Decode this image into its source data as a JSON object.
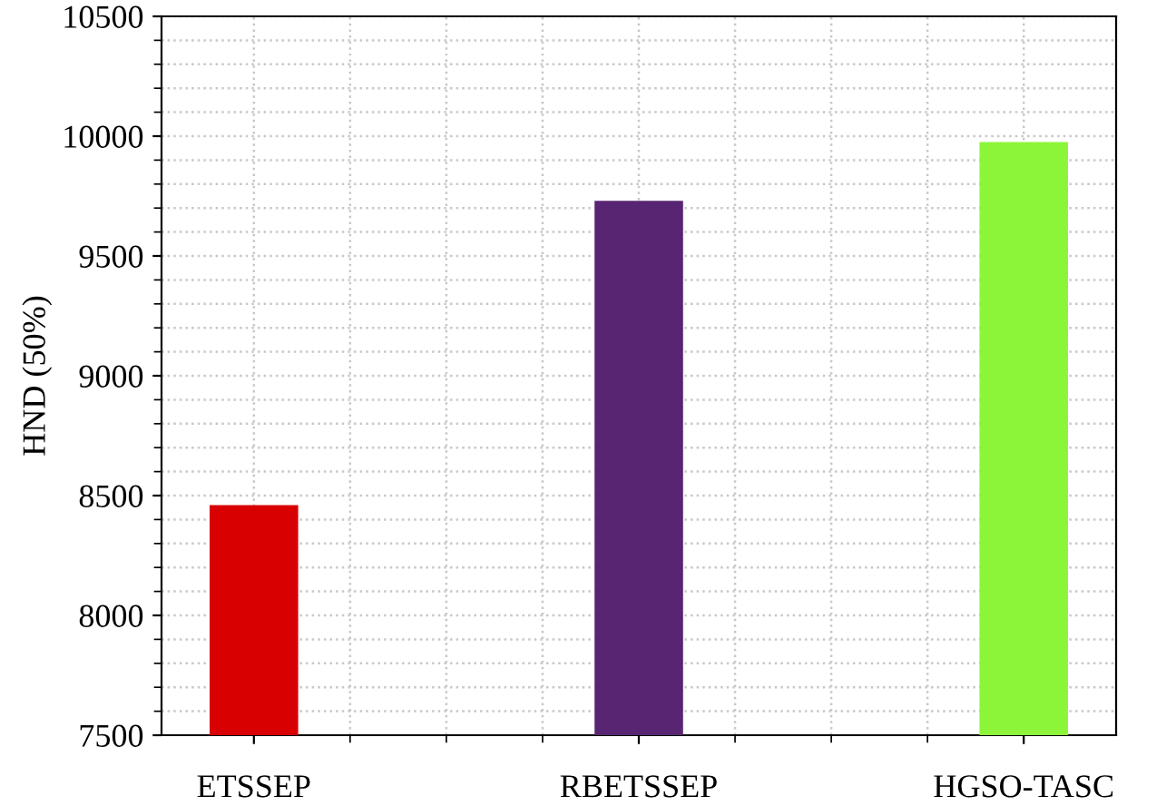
{
  "chart_data": {
    "type": "bar",
    "ylabel": "HND (50%)",
    "categories": [
      "ETSSEP",
      "RBETSSEP",
      "HGSO-TASC"
    ],
    "values": [
      8460,
      9730,
      9975
    ],
    "colors": [
      "#d80000",
      "#582573",
      "#8cf53a"
    ],
    "ylim": [
      7500,
      10500
    ],
    "yticks": [
      7500,
      8000,
      8500,
      9000,
      9500,
      10000,
      10500
    ],
    "grid": true
  }
}
